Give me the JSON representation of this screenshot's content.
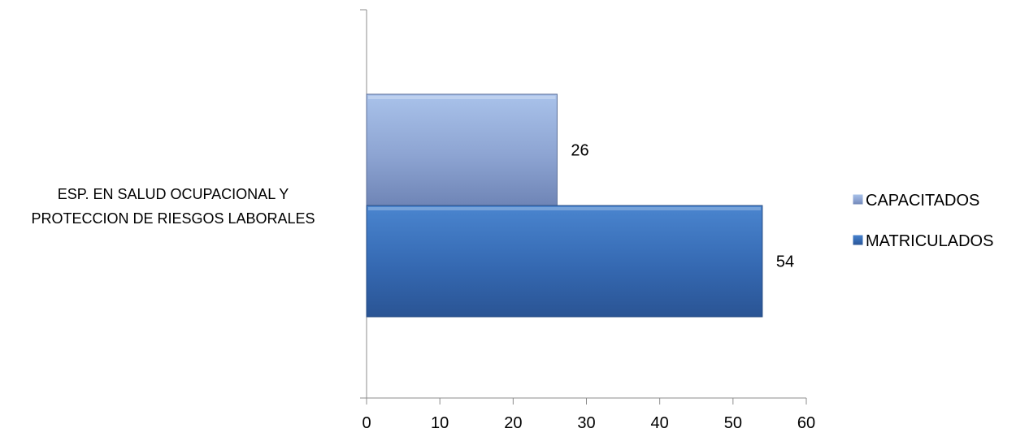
{
  "chart_data": {
    "type": "bar",
    "orientation": "horizontal",
    "categories": [
      "ESP. EN SALUD OCUPACIONAL  Y PROTECCION  DE RIESGOS LABORALES"
    ],
    "category_label_lines": [
      "ESP. EN SALUD OCUPACIONAL  Y",
      "PROTECCION  DE RIESGOS LABORALES"
    ],
    "series": [
      {
        "name": "CAPACITADOS",
        "values": [
          26
        ],
        "color": "#8ea6d3"
      },
      {
        "name": "MATRICULADOS",
        "values": [
          54
        ],
        "color": "#3a6fb7"
      }
    ],
    "data_labels": [
      "26",
      "54"
    ],
    "xlim": [
      0,
      60
    ],
    "xticks": [
      0,
      10,
      20,
      30,
      40,
      50,
      60
    ],
    "title": "",
    "xlabel": "",
    "ylabel": "",
    "grid": false,
    "legend_position": "right"
  }
}
